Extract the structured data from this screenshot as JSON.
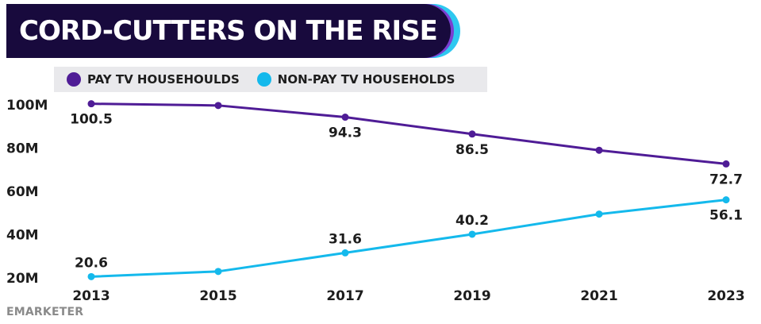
{
  "header": {
    "title": "CORD-CUTTERS ON THE RISE"
  },
  "legend": [
    {
      "label": "PAY TV HOUSEHOULDS",
      "color": "#4f1c96"
    },
    {
      "label": "NON-PAY TV HOUSEHOLDS",
      "color": "#14b9ec"
    }
  ],
  "source": "EMARKETER",
  "chart_data": {
    "type": "line",
    "x": [
      2013,
      2015,
      2017,
      2019,
      2021,
      2023
    ],
    "x_ticks": [
      "2013",
      "2015",
      "2017",
      "2019",
      "2021",
      "2023"
    ],
    "y_ticks": [
      "100M",
      "80M",
      "60M",
      "40M",
      "20M"
    ],
    "y_tick_values": [
      100,
      80,
      60,
      40,
      20
    ],
    "ylim": [
      20,
      100
    ],
    "grid": false,
    "legend_position": "top",
    "series": [
      {
        "name": "PAY TV HOUSEHOULDS",
        "color": "#4f1c96",
        "values": [
          100.5,
          99.7,
          94.3,
          86.5,
          79.0,
          72.7
        ],
        "labels": [
          "100.5",
          "",
          "94.3",
          "86.5",
          "",
          "72.7"
        ]
      },
      {
        "name": "NON-PAY TV HOUSEHOLDS",
        "color": "#14b9ec",
        "values": [
          20.6,
          23.0,
          31.6,
          40.2,
          49.5,
          56.1
        ],
        "labels": [
          "20.6",
          "",
          "31.6",
          "40.2",
          "",
          "56.1"
        ]
      }
    ]
  }
}
